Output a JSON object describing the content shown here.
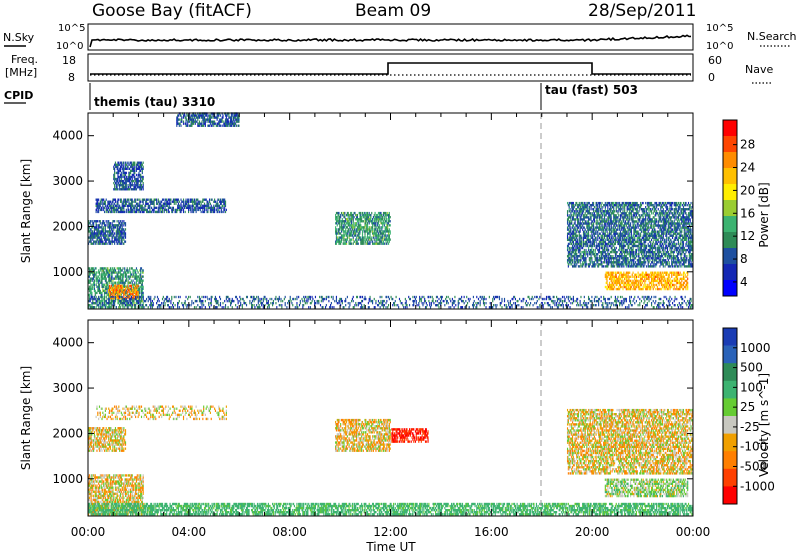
{
  "header": {
    "site": "Goose Bay (fitACF)",
    "beam": "Beam 09",
    "date": "28/Sep/2011"
  },
  "strip_labels": {
    "nsky": "N.Sky",
    "nsearch": "N.Search",
    "freq_line1": "Freq.",
    "freq_line2": "[MHz]",
    "nave": "Nave",
    "cpid": "CPID"
  },
  "strip_ticks": {
    "nsky_left": [
      "10^5",
      "10^0"
    ],
    "nsky_right": [
      "10^5",
      "10^0"
    ],
    "freq_left": [
      "18",
      "8"
    ],
    "nave_right": [
      "60",
      "0"
    ]
  },
  "cpid_labels": [
    {
      "label": "themis (tau) 3310",
      "start_hour": 0
    },
    {
      "label": "tau (fast) 503",
      "start_hour": 18
    }
  ],
  "colorbars": {
    "power": {
      "label": "Power [dB]",
      "ticks": [
        "28",
        "24",
        "20",
        "16",
        "12",
        "8",
        "4"
      ],
      "colors": [
        "#ff0000",
        "#ff4500",
        "#ff8c00",
        "#ffc000",
        "#ffee00",
        "#9acd32",
        "#3cb371",
        "#2e8b57",
        "#1e50a0",
        "#1428b4",
        "#0000ff"
      ]
    },
    "velocity": {
      "label": "Velocity [m s^-1]",
      "ticks": [
        "1000",
        "500",
        "100",
        "25",
        "-25",
        "-100",
        "-500",
        "-1000"
      ],
      "colors": [
        "#1a3cb4",
        "#2a62b8",
        "#2e8b57",
        "#3cb371",
        "#66cc33",
        "#c8c8c0",
        "#f0a000",
        "#ff7f00",
        "#ff4000",
        "#ff0000"
      ]
    }
  },
  "chart_data": [
    {
      "type": "heatmap",
      "panel": "power",
      "xlabel": "Time UT",
      "ylabel": "Slant Range [km]",
      "x_ticks": [
        "00:00",
        "04:00",
        "08:00",
        "12:00",
        "16:00",
        "20:00",
        "00:00"
      ],
      "y_ticks": [
        1000,
        2000,
        3000,
        4000
      ],
      "xlim_hours": [
        0,
        24
      ],
      "ylim_km": [
        180,
        4500
      ],
      "cpid_change_hour": 18,
      "regions": [
        {
          "t0": 0.0,
          "t1": 2.2,
          "r0": 200,
          "r1": 1100,
          "v": 10
        },
        {
          "t0": 0.8,
          "t1": 2.0,
          "r0": 400,
          "r1": 700,
          "v": 24
        },
        {
          "t0": 0.0,
          "t1": 24.0,
          "r0": 200,
          "r1": 450,
          "v": 6
        },
        {
          "t0": 0.3,
          "t1": 5.5,
          "r0": 2300,
          "r1": 2600,
          "v": 6
        },
        {
          "t0": 0.0,
          "t1": 1.5,
          "r0": 1600,
          "r1": 2100,
          "v": 6
        },
        {
          "t0": 1.0,
          "t1": 2.2,
          "r0": 2800,
          "r1": 3400,
          "v": 6
        },
        {
          "t0": 3.5,
          "t1": 6.0,
          "r0": 4200,
          "r1": 4500,
          "v": 6
        },
        {
          "t0": 9.8,
          "t1": 12.0,
          "r0": 1600,
          "r1": 2300,
          "v": 10
        },
        {
          "t0": 19.0,
          "t1": 24.0,
          "r0": 1100,
          "r1": 2500,
          "v": 7
        },
        {
          "t0": 20.5,
          "t1": 23.8,
          "r0": 600,
          "r1": 1000,
          "v": 22
        }
      ]
    },
    {
      "type": "heatmap",
      "panel": "velocity",
      "xlabel": "Time UT",
      "ylabel": "Slant Range [km]",
      "x_ticks": [
        "00:00",
        "04:00",
        "08:00",
        "12:00",
        "16:00",
        "20:00",
        "00:00"
      ],
      "y_ticks": [
        1000,
        2000,
        3000,
        4000
      ],
      "xlim_hours": [
        0,
        24
      ],
      "ylim_km": [
        180,
        4500
      ],
      "cpid_change_hour": 18,
      "regions": [
        {
          "t0": 0.0,
          "t1": 2.2,
          "r0": 200,
          "r1": 1100,
          "v": 0
        },
        {
          "t0": 0.0,
          "t1": 24.0,
          "r0": 200,
          "r1": 450,
          "v": 150
        },
        {
          "t0": 0.3,
          "t1": 5.5,
          "r0": 2300,
          "r1": 2600,
          "v": 0
        },
        {
          "t0": 0.0,
          "t1": 1.5,
          "r0": 1600,
          "r1": 2100,
          "v": 0
        },
        {
          "t0": 9.8,
          "t1": 12.0,
          "r0": 1600,
          "r1": 2300,
          "v": 0
        },
        {
          "t0": 12.0,
          "t1": 13.5,
          "r0": 1800,
          "r1": 2100,
          "v": -300
        },
        {
          "t0": 19.0,
          "t1": 24.0,
          "r0": 1100,
          "r1": 2500,
          "v": 0
        },
        {
          "t0": 20.5,
          "t1": 23.8,
          "r0": 600,
          "r1": 1000,
          "v": 60
        }
      ]
    }
  ]
}
